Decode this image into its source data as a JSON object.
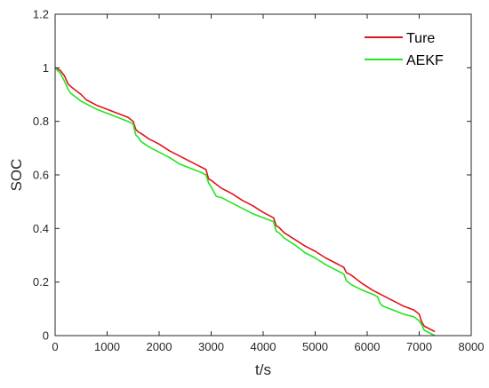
{
  "chart_data": {
    "type": "line",
    "xlabel": "t/s",
    "ylabel": "SOC",
    "xlim": [
      0,
      8000
    ],
    "ylim": [
      0,
      1.2
    ],
    "xticks": [
      "0",
      "1000",
      "2000",
      "3000",
      "4000",
      "5000",
      "6000",
      "7000",
      "8000"
    ],
    "yticks": [
      "0",
      "0.2",
      "0.4",
      "0.6",
      "0.8",
      "1",
      "1.2"
    ],
    "grid": false,
    "legend_position": "top-right",
    "colors": {
      "Ture": "#e0141e",
      "AEKF": "#22e61e"
    },
    "series": [
      {
        "name": "Ture",
        "x": [
          0,
          100,
          180,
          250,
          300,
          400,
          500,
          600,
          800,
          1000,
          1200,
          1400,
          1500,
          1550,
          1600,
          1650,
          1800,
          2000,
          2200,
          2400,
          2600,
          2800,
          2900,
          2950,
          3000,
          3100,
          3200,
          3400,
          3600,
          3800,
          4000,
          4200,
          4250,
          4300,
          4400,
          4600,
          4800,
          5000,
          5200,
          5400,
          5550,
          5600,
          5700,
          5900,
          6100,
          6300,
          6500,
          6700,
          6900,
          7000,
          7050,
          7100,
          7150,
          7200,
          7250,
          7300
        ],
        "y": [
          1.0,
          0.99,
          0.97,
          0.94,
          0.93,
          0.915,
          0.9,
          0.88,
          0.86,
          0.845,
          0.83,
          0.815,
          0.8,
          0.77,
          0.76,
          0.755,
          0.735,
          0.715,
          0.69,
          0.67,
          0.65,
          0.63,
          0.62,
          0.585,
          0.58,
          0.565,
          0.55,
          0.53,
          0.505,
          0.485,
          0.46,
          0.44,
          0.41,
          0.405,
          0.385,
          0.36,
          0.335,
          0.315,
          0.29,
          0.27,
          0.255,
          0.235,
          0.225,
          0.195,
          0.17,
          0.15,
          0.13,
          0.11,
          0.095,
          0.08,
          0.05,
          0.035,
          0.03,
          0.025,
          0.02,
          0.015
        ]
      },
      {
        "name": "AEKF",
        "x": [
          0,
          100,
          180,
          250,
          300,
          400,
          500,
          600,
          800,
          1000,
          1200,
          1400,
          1500,
          1550,
          1600,
          1650,
          1800,
          2000,
          2200,
          2400,
          2600,
          2800,
          2900,
          2950,
          3000,
          3100,
          3200,
          3400,
          3600,
          3800,
          4000,
          4200,
          4250,
          4300,
          4400,
          4600,
          4800,
          5000,
          5200,
          5400,
          5550,
          5600,
          5700,
          5900,
          6100,
          6200,
          6250,
          6300,
          6500,
          6700,
          6900,
          7000,
          7050,
          7100,
          7150,
          7200,
          7250,
          7300
        ],
        "y": [
          1.0,
          0.98,
          0.95,
          0.92,
          0.905,
          0.89,
          0.875,
          0.865,
          0.845,
          0.83,
          0.815,
          0.8,
          0.79,
          0.75,
          0.74,
          0.725,
          0.705,
          0.685,
          0.665,
          0.64,
          0.625,
          0.61,
          0.6,
          0.57,
          0.555,
          0.52,
          0.515,
          0.495,
          0.475,
          0.455,
          0.44,
          0.425,
          0.39,
          0.385,
          0.365,
          0.34,
          0.31,
          0.29,
          0.265,
          0.245,
          0.23,
          0.205,
          0.19,
          0.17,
          0.155,
          0.145,
          0.12,
          0.11,
          0.095,
          0.08,
          0.07,
          0.055,
          0.04,
          0.02,
          0.015,
          0.01,
          0.005,
          0.0
        ]
      }
    ]
  }
}
